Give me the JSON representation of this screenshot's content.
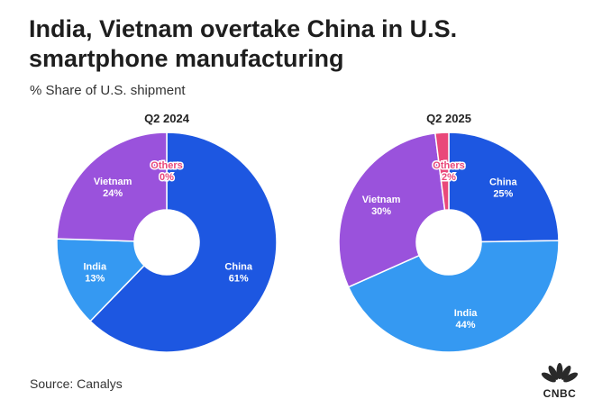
{
  "header": {
    "title": "India, Vietnam overtake China in U.S. smartphone manufacturing",
    "subtitle": "% Share of U.S. shipment"
  },
  "footer": {
    "source": "Source: Canalys",
    "logo_text": "CNBC"
  },
  "colors": {
    "China": "#1d57e1",
    "India": "#3599f2",
    "Vietnam": "#9a52dc",
    "Others": "#e9487a",
    "others_label_fill": "#ffffff",
    "others_label_outline": "#e9487a"
  },
  "chart_data": [
    {
      "type": "pie",
      "title": "Q2 2024",
      "categories": [
        "China",
        "India",
        "Vietnam",
        "Others"
      ],
      "values": [
        61,
        13,
        24,
        0
      ],
      "labels": [
        "61%",
        "13%",
        "24%",
        "0%"
      ]
    },
    {
      "type": "pie",
      "title": "Q2 2025",
      "categories": [
        "China",
        "India",
        "Vietnam",
        "Others"
      ],
      "values": [
        25,
        44,
        30,
        2
      ],
      "labels": [
        "25%",
        "44%",
        "30%",
        "2%"
      ]
    }
  ]
}
